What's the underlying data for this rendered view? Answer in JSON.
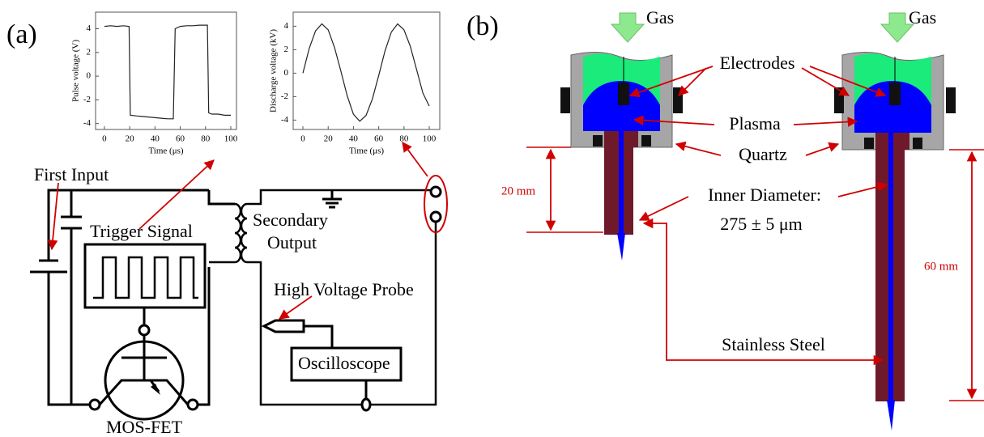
{
  "panels": {
    "a": "(a)",
    "b": "(b)"
  },
  "insets": [
    {
      "type": "line",
      "x_label": "Time (μs)",
      "y_label": "Pulse voltage (V)",
      "xlim": [
        -7,
        104.5
      ],
      "ylim": [
        -4.5,
        5.4
      ],
      "xticks": [
        0,
        20,
        40,
        60,
        80,
        100
      ],
      "yticks": [
        -4,
        -2,
        0,
        2,
        4
      ],
      "x": [
        0,
        5,
        10,
        15,
        19.5,
        20.5,
        25,
        30,
        35,
        40,
        45,
        50,
        54.5,
        56,
        60,
        65,
        70,
        75,
        81.5,
        82.5,
        85,
        90,
        95,
        100
      ],
      "values": [
        4.2,
        4.25,
        4.2,
        4.25,
        4.2,
        -3.3,
        -3.35,
        -3.4,
        -3.45,
        -3.5,
        -3.55,
        -3.6,
        -3.6,
        4.0,
        4.2,
        4.25,
        4.25,
        4.3,
        4.3,
        -3.1,
        -3.2,
        -3.2,
        -3.3,
        -3.3
      ]
    },
    {
      "type": "line",
      "x_label": "Time (μs)",
      "y_label": "Discharge voltage (kV)",
      "xlim": [
        -7.7,
        108.3
      ],
      "ylim": [
        -4.8,
        5.2
      ],
      "xticks": [
        0,
        20,
        40,
        60,
        80,
        100
      ],
      "yticks": [
        -4,
        -2,
        0,
        2,
        4
      ],
      "x": [
        0,
        5,
        10,
        15,
        20,
        25,
        30,
        35,
        40,
        45,
        50,
        55,
        60,
        65,
        70,
        75,
        80,
        85,
        90,
        95,
        100
      ],
      "values": [
        0,
        2.1,
        3.6,
        4.2,
        3.7,
        2.2,
        0.2,
        -1.9,
        -3.5,
        -4.1,
        -3.6,
        -2.2,
        -0.2,
        1.9,
        3.5,
        4.2,
        3.7,
        2.3,
        0.3,
        -1.7,
        -2.8
      ]
    }
  ],
  "circuit": {
    "first_input": "First Input",
    "trigger_signal": "Trigger Signal",
    "secondary": "Secondary",
    "output": "Output",
    "probe": "High Voltage Probe",
    "oscilloscope": "Oscilloscope",
    "mosfet": "MOS-FET"
  },
  "device": {
    "gas": [
      "Gas",
      "Gas"
    ],
    "electrodes": "Electrodes",
    "plasma": "Plasma",
    "quartz": "Quartz",
    "inner_diameter": "Inner Diameter:",
    "diameter_value": "275 ± 5 μm",
    "short_length": "20 mm",
    "long_length": "60 mm",
    "steel": "Stainless Steel"
  }
}
